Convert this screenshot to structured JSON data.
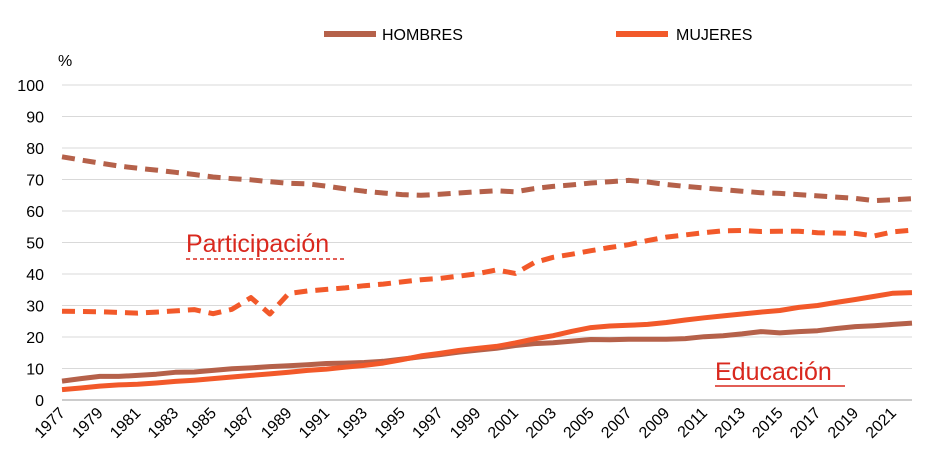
{
  "chart_data": {
    "type": "line",
    "y_unit": "%",
    "ylim": [
      0,
      100
    ],
    "yticks": [
      0,
      10,
      20,
      30,
      40,
      50,
      60,
      70,
      80,
      90,
      100
    ],
    "x": [
      1977,
      1978,
      1979,
      1980,
      1981,
      1982,
      1983,
      1984,
      1985,
      1986,
      1987,
      1988,
      1989,
      1990,
      1991,
      1992,
      1993,
      1994,
      1995,
      1996,
      1997,
      1998,
      1999,
      2000,
      2001,
      2002,
      2003,
      2004,
      2005,
      2006,
      2007,
      2008,
      2009,
      2010,
      2011,
      2012,
      2013,
      2014,
      2015,
      2016,
      2017,
      2018,
      2019,
      2020,
      2021,
      2022
    ],
    "xtick_labels": [
      "1977",
      "1979",
      "1981",
      "1983",
      "1985",
      "1987",
      "1989",
      "1991",
      "1993",
      "1995",
      "1997",
      "1999",
      "2001",
      "2003",
      "2005",
      "2007",
      "2009",
      "2011",
      "2013",
      "2015",
      "2017",
      "2019",
      "2021"
    ],
    "legend": [
      {
        "key": "hombres",
        "label": "HOMBRES",
        "color": "#b5614a"
      },
      {
        "key": "mujeres",
        "label": "MUJERES",
        "color": "#f2592a"
      }
    ],
    "annotations": {
      "participacion": "Participación",
      "educacion": "Educación",
      "color": "#d9281e"
    },
    "series": [
      {
        "name": "Participación HOMBRES",
        "legend_key": "hombres",
        "style": "dashed",
        "color": "#b5614a",
        "values": [
          77.2,
          76.2,
          75.2,
          74.3,
          73.6,
          73.0,
          72.3,
          71.6,
          70.8,
          70.3,
          69.9,
          69.3,
          68.8,
          68.6,
          67.9,
          67.0,
          66.3,
          65.7,
          65.2,
          65.0,
          65.3,
          65.7,
          66.1,
          66.4,
          66.1,
          67.1,
          67.8,
          68.3,
          68.9,
          69.3,
          69.7,
          69.2,
          68.4,
          67.8,
          67.3,
          66.8,
          66.3,
          65.8,
          65.6,
          65.2,
          64.8,
          64.4,
          64.0,
          63.3,
          63.6,
          63.9
        ]
      },
      {
        "name": "Participación MUJERES",
        "legend_key": "mujeres",
        "style": "dashed",
        "color": "#f2592a",
        "values": [
          28.2,
          28.1,
          28.0,
          27.8,
          27.6,
          27.9,
          28.3,
          28.7,
          27.4,
          28.8,
          32.5,
          27.3,
          33.8,
          34.6,
          35.1,
          35.6,
          36.3,
          36.8,
          37.5,
          38.2,
          38.6,
          39.3,
          40.1,
          41.3,
          40.2,
          43.6,
          45.3,
          46.3,
          47.4,
          48.4,
          49.3,
          50.6,
          51.7,
          52.4,
          53.1,
          53.7,
          53.8,
          53.5,
          53.6,
          53.6,
          53.1,
          53.0,
          52.9,
          52.1,
          53.4,
          53.9
        ]
      },
      {
        "name": "Educación HOMBRES",
        "legend_key": "hombres",
        "style": "solid",
        "color": "#b5614a",
        "values": [
          6.0,
          6.8,
          7.5,
          7.5,
          7.8,
          8.2,
          8.8,
          8.9,
          9.4,
          9.9,
          10.2,
          10.6,
          10.9,
          11.2,
          11.6,
          11.7,
          11.9,
          12.3,
          13.0,
          13.7,
          14.4,
          15.2,
          15.8,
          16.4,
          17.3,
          17.9,
          18.2,
          18.7,
          19.2,
          19.1,
          19.3,
          19.3,
          19.3,
          19.5,
          20.1,
          20.4,
          21.0,
          21.7,
          21.3,
          21.7,
          22.0,
          22.7,
          23.3,
          23.6,
          24.0,
          24.4
        ]
      },
      {
        "name": "Educación MUJERES",
        "legend_key": "mujeres",
        "style": "solid",
        "color": "#f2592a",
        "values": [
          3.3,
          3.8,
          4.4,
          4.8,
          5.0,
          5.4,
          5.9,
          6.3,
          6.8,
          7.3,
          7.8,
          8.3,
          8.8,
          9.4,
          9.8,
          10.4,
          11.0,
          11.7,
          12.8,
          14.0,
          14.8,
          15.7,
          16.4,
          17.0,
          18.1,
          19.4,
          20.4,
          21.8,
          23.0,
          23.5,
          23.7,
          24.0,
          24.6,
          25.4,
          26.1,
          26.7,
          27.3,
          27.9,
          28.4,
          29.4,
          30.0,
          31.0,
          31.9,
          32.9,
          33.9,
          34.1
        ]
      }
    ]
  }
}
